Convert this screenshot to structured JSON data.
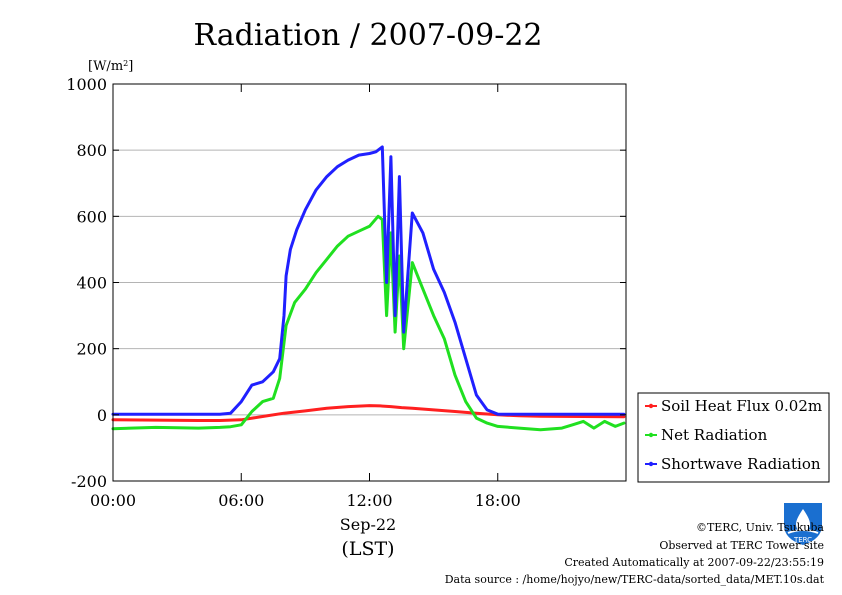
{
  "header": {
    "title": "Radiation / 2007-09-22"
  },
  "footer": {
    "copyright": "©TERC, Univ. Tsukuba",
    "observed": "Observed at TERC Tower site",
    "created": "Created Automatically at 2007-09-22/23:55:19",
    "source": "Data source : /home/hojyo/new/TERC-data/sorted_data/MET.10s.dat",
    "logo_text": "TERC"
  },
  "colors": {
    "soil": "#ff2020",
    "net": "#20e020",
    "shortwave": "#2020ff",
    "grid": "#b4b4b4"
  },
  "chart_data": {
    "type": "line",
    "title": "Radiation / 2007-09-22",
    "ylabel": "[W/m²]",
    "ylabel_base": "[W/m",
    "ylabel_sup": "2",
    "ylabel_end": "]",
    "xlabel_date": "Sep-22",
    "xlabel_tz": "(LST)",
    "xlim": [
      0,
      24
    ],
    "ylim": [
      -200,
      1000
    ],
    "yticks": [
      -200,
      0,
      200,
      400,
      600,
      800,
      1000
    ],
    "xticks": [
      {
        "value": 0,
        "label": "00:00"
      },
      {
        "value": 6,
        "label": "06:00"
      },
      {
        "value": 12,
        "label": "12:00"
      },
      {
        "value": 18,
        "label": "18:00"
      }
    ],
    "grid": true,
    "legend_position": "bottom-right-outside",
    "series": [
      {
        "name": "Soil Heat Flux 0.02m",
        "color": "#ff2020",
        "x": [
          0,
          2,
          4,
          5,
          6,
          7,
          8,
          9,
          10,
          11,
          12,
          12.5,
          13,
          13.5,
          14,
          15,
          16,
          17,
          18,
          19,
          20,
          22,
          23.9
        ],
        "y": [
          -15,
          -16,
          -17,
          -17,
          -15,
          -5,
          5,
          12,
          20,
          25,
          28,
          27,
          25,
          22,
          20,
          15,
          10,
          5,
          0,
          -3,
          -4,
          -5,
          -6
        ]
      },
      {
        "name": "Net Radiation",
        "color": "#20e020",
        "x": [
          0,
          2,
          4,
          5,
          5.5,
          6,
          6.5,
          7,
          7.5,
          7.8,
          8.1,
          8.5,
          9,
          9.5,
          10,
          10.5,
          11,
          11.5,
          12,
          12.4,
          12.6,
          12.8,
          13.0,
          13.2,
          13.4,
          13.6,
          14,
          14.5,
          15,
          15.5,
          16,
          16.5,
          17,
          17.5,
          18,
          19,
          20,
          21,
          21.5,
          22,
          22.5,
          23,
          23.5,
          23.9
        ],
        "y": [
          -42,
          -38,
          -40,
          -38,
          -36,
          -30,
          10,
          40,
          50,
          110,
          270,
          340,
          380,
          430,
          470,
          510,
          540,
          555,
          570,
          600,
          590,
          300,
          550,
          250,
          480,
          200,
          460,
          380,
          300,
          230,
          120,
          40,
          -10,
          -25,
          -35,
          -40,
          -45,
          -40,
          -30,
          -20,
          -40,
          -20,
          -35,
          -25
        ]
      },
      {
        "name": "Shortwave Radiation",
        "color": "#2020ff",
        "x": [
          0,
          3,
          5,
          5.5,
          6,
          6.5,
          7,
          7.5,
          7.8,
          8.0,
          8.1,
          8.3,
          8.6,
          9,
          9.5,
          10,
          10.5,
          11,
          11.5,
          12,
          12.3,
          12.6,
          12.8,
          13.0,
          13.2,
          13.4,
          13.6,
          14,
          14.5,
          15,
          15.5,
          16,
          16.5,
          17,
          17.5,
          18,
          20,
          22,
          23.9
        ],
        "y": [
          2,
          2,
          2,
          5,
          40,
          90,
          100,
          130,
          170,
          300,
          420,
          500,
          560,
          620,
          680,
          720,
          750,
          770,
          785,
          790,
          795,
          810,
          400,
          780,
          300,
          720,
          250,
          610,
          550,
          440,
          370,
          280,
          170,
          60,
          15,
          2,
          2,
          2,
          2
        ]
      }
    ]
  }
}
